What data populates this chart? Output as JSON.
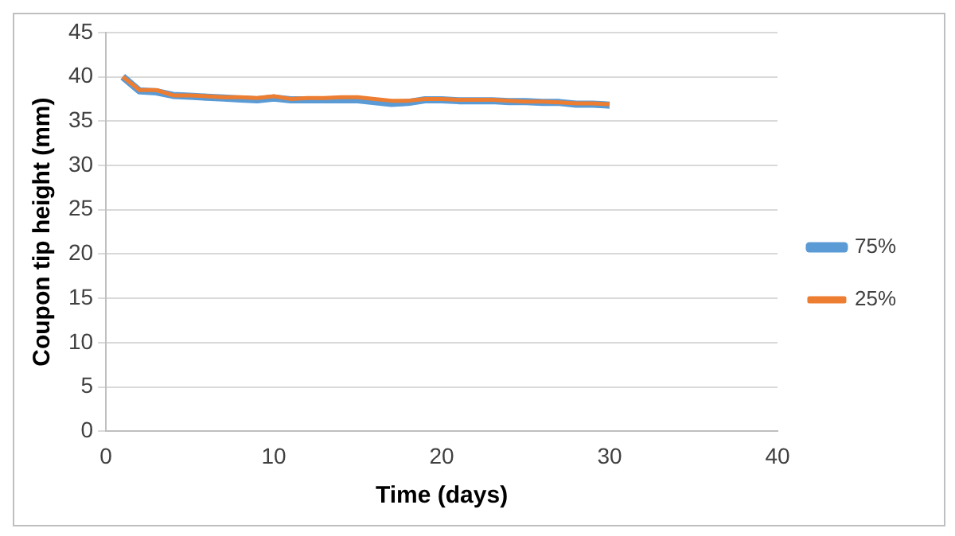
{
  "chart_data": {
    "type": "line",
    "xlabel": "Time (days)",
    "ylabel": "Coupon tip height (mm)",
    "x": [
      1,
      2,
      3,
      4,
      5,
      6,
      7,
      8,
      9,
      10,
      11,
      12,
      13,
      14,
      15,
      16,
      17,
      18,
      19,
      20,
      21,
      22,
      23,
      24,
      25,
      26,
      27,
      28,
      29,
      30
    ],
    "series": [
      {
        "name": "75%",
        "color": "#5b9bd5",
        "values": [
          40,
          38.4,
          38.3,
          37.9,
          37.8,
          37.7,
          37.6,
          37.5,
          37.4,
          37.6,
          37.4,
          37.4,
          37.4,
          37.4,
          37.4,
          37.2,
          37.0,
          37.1,
          37.4,
          37.4,
          37.3,
          37.3,
          37.3,
          37.2,
          37.2,
          37.1,
          37.1,
          36.9,
          36.9,
          36.8
        ]
      },
      {
        "name": "25%",
        "color": "#ed7d31",
        "values": [
          40,
          38.5,
          38.5,
          37.9,
          37.9,
          37.8,
          37.7,
          37.7,
          37.6,
          37.8,
          37.5,
          37.6,
          37.6,
          37.7,
          37.7,
          37.5,
          37.3,
          37.3,
          37.5,
          37.5,
          37.4,
          37.4,
          37.4,
          37.3,
          37.2,
          37.2,
          37.1,
          37.0,
          37.0,
          36.9
        ]
      }
    ],
    "xlim": [
      0,
      40
    ],
    "xticks": [
      0,
      10,
      20,
      30,
      40
    ],
    "ylim": [
      0,
      45
    ],
    "yticks": [
      0,
      5,
      10,
      15,
      20,
      25,
      30,
      35,
      40,
      45
    ],
    "grid": "y",
    "legend": "right",
    "marker": "none",
    "line_style": "solid"
  }
}
